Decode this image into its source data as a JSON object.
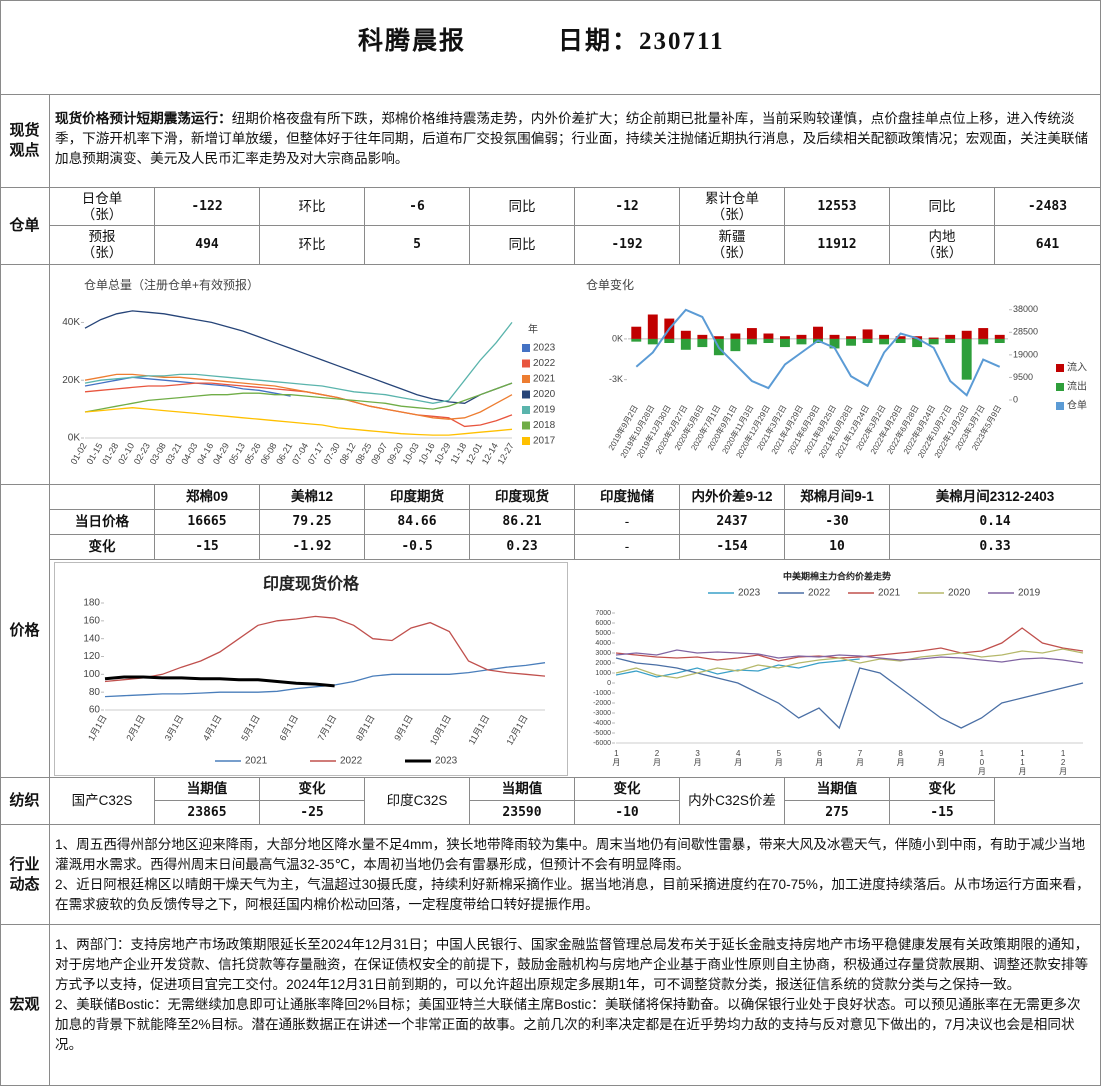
{
  "header": {
    "title": "科腾晨报",
    "date": "日期：230711"
  },
  "spot": {
    "label": "现货观点",
    "lead": "现货价格预计短期震荡运行：",
    "text": "纽期价格夜盘有所下跌，郑棉价格维持震荡走势，内外价差扩大；纺企前期已批量补库，当前采购较谨慎，点价盘挂单点位上移，进入传统淡季，下游开机率下滑，新增订单放缓，但整体好于往年同期，后道布厂交投氛围偏弱；行业面，持续关注抛储近期执行消息，及后续相关配额政策情况；宏观面，关注美联储加息预期演变、美元及人民币汇率走势及对大宗商品影响。"
  },
  "warehouse": {
    "label": "仓单",
    "rows": [
      [
        "日仓单（张）",
        -122,
        "环比",
        -6,
        "同比",
        -12,
        "累计仓单（张）",
        12553,
        "同比",
        -2483
      ],
      [
        "预报（张）",
        494,
        "环比",
        5,
        "同比",
        -192,
        "新疆（张）",
        11912,
        "内地（张）",
        641
      ]
    ]
  },
  "price": {
    "label": "价格",
    "header": [
      "郑棉09",
      "美棉12",
      "印度期货",
      "印度现货",
      "印度抛储",
      "内外价差9-12",
      "郑棉月间9-1",
      "美棉月间2312-2403"
    ],
    "rows": [
      {
        "name": "当日价格",
        "values": [
          16665,
          79.25,
          84.66,
          86.21,
          "-",
          2437,
          -30,
          0.14
        ]
      },
      {
        "name": "变化",
        "values": [
          -15,
          -1.92,
          -0.5,
          0.23,
          "-",
          -154,
          10,
          0.33
        ]
      }
    ]
  },
  "textile": {
    "label": "纺织",
    "groups": [
      {
        "name": "国产C32S",
        "current_label": "当期值",
        "current": 23865,
        "change_label": "变化",
        "change": -25
      },
      {
        "name": "印度C32S",
        "current_label": "当期值",
        "current": 23590,
        "change_label": "变化",
        "change": -10
      },
      {
        "name": "内外C32S价差",
        "current_label": "当期值",
        "current": 275,
        "change_label": "变化",
        "change": -15
      }
    ]
  },
  "industry": {
    "label": "行业动态",
    "paragraphs": [
      "1、周五西得州部分地区迎来降雨，大部分地区降水量不足4mm，狭长地带降雨较为集中。周末当地仍有间歇性雷暴，带来大风及冰雹天气，伴随小到中雨，有助于减少当地灌溉用水需求。西得州周末日间最高气温32-35℃，本周初当地仍会有雷暴形成，但预计不会有明显降雨。",
      "2、近日阿根廷棉区以晴朗干燥天气为主，气温超过30摄氏度，持续利好新棉采摘作业。据当地消息，目前采摘进度约在70-75%，加工进度持续落后。从市场运行方面来看，在需求疲软的负反馈传导之下，阿根廷国内棉价松动回落，一定程度带给口转好提振作用。"
    ]
  },
  "macro": {
    "label": "宏观",
    "paragraphs": [
      "1、两部门：支持房地产市场政策期限延长至2024年12月31日；中国人民银行、国家金融监督管理总局发布关于延长金融支持房地产市场平稳健康发展有关政策期限的通知，对于房地产企业开发贷款、信托贷款等存量融资，在保证债权安全的前提下，鼓励金融机构与房地产企业基于商业性原则自主协商，积极通过存量贷款展期、调整还款安排等方式予以支持，促进项目宜完工交付。2024年12月31日前到期的，可以允许超出原规定多展期1年，可不调整贷款分类，报送征信系统的贷款分类与之保持一致。",
      "2、美联储Bostic：无需继续加息即可让通胀率降回2%目标；美国亚特兰大联储主席Bostic：美联储将保持勤奋。以确保银行业处于良好状态。可以预见通胀率在无需更多次加息的背景下就能降至2%目标。潜在通胀数据正在讲述一个非常正面的故事。之前几次的利率决定都是在近乎势均力敌的支持与反对意见下做出的，7月决议也会是相同状况。"
    ]
  },
  "chart_data": [
    {
      "type": "line",
      "title": "仓单总量（注册仓单+有效预报）",
      "legend_title": "年",
      "categories": [
        "01-02",
        "01-15",
        "01-28",
        "02-10",
        "02-23",
        "03-08",
        "03-21",
        "04-03",
        "04-16",
        "04-29",
        "05-13",
        "05-26",
        "06-08",
        "06-21",
        "07-04",
        "07-17",
        "07-30",
        "08-12",
        "08-25",
        "09-07",
        "09-20",
        "10-03",
        "10-16",
        "10-29",
        "11-18",
        "12-01",
        "12-14",
        "12-27"
      ],
      "ylim": [
        0,
        45000
      ],
      "yticks": [
        {
          "value": 0,
          "label": "0K"
        },
        {
          "value": 20000,
          "label": "20K"
        },
        {
          "value": 40000,
          "label": "40K"
        }
      ],
      "series": [
        {
          "name": "2023",
          "color": "#4472c4",
          "values": [
            18000,
            19000,
            20000,
            21000,
            20500,
            20000,
            19500,
            19000,
            18500,
            18000,
            17000,
            16500,
            15500,
            14500,
            null,
            null,
            null,
            null,
            null,
            null,
            null,
            null,
            null,
            null,
            null,
            null,
            null,
            null
          ]
        },
        {
          "name": "2022",
          "color": "#e8553e",
          "values": [
            16000,
            16500,
            17000,
            17500,
            18000,
            18000,
            18500,
            19000,
            19000,
            18500,
            18000,
            17500,
            17000,
            16500,
            16000,
            15000,
            14000,
            12500,
            11000,
            10000,
            9000,
            8000,
            7500,
            7000,
            4000,
            4500,
            6000,
            8000
          ]
        },
        {
          "name": "2021",
          "color": "#ed7d31",
          "values": [
            20000,
            21000,
            22000,
            22000,
            21500,
            21000,
            21000,
            20500,
            20000,
            19500,
            19000,
            18500,
            18000,
            17000,
            16000,
            15000,
            14000,
            12500,
            11000,
            10000,
            9000,
            8000,
            7000,
            6500,
            7000,
            9000,
            12000,
            15000
          ]
        },
        {
          "name": "2020",
          "color": "#264478",
          "values": [
            38000,
            41000,
            43000,
            44000,
            43500,
            43000,
            42000,
            41000,
            40000,
            38500,
            37000,
            35000,
            33000,
            31000,
            29000,
            27000,
            25000,
            23000,
            21000,
            19000,
            17000,
            15000,
            13500,
            12500,
            12000,
            15000,
            17000,
            19000
          ]
        },
        {
          "name": "2019",
          "color": "#5ab4ac",
          "values": [
            19000,
            20000,
            20500,
            21000,
            21500,
            21500,
            22000,
            22000,
            21500,
            21000,
            20500,
            20000,
            19500,
            19000,
            18500,
            18000,
            17000,
            16000,
            15500,
            15000,
            14000,
            13000,
            12000,
            13000,
            20000,
            27000,
            33000,
            40000
          ]
        },
        {
          "name": "2018",
          "color": "#70ad47",
          "values": [
            9000,
            10000,
            11000,
            12000,
            13000,
            13500,
            14000,
            14500,
            15000,
            15000,
            15500,
            15500,
            15000,
            15000,
            14500,
            14000,
            13500,
            13000,
            12500,
            12000,
            11000,
            10500,
            10000,
            11000,
            13000,
            15000,
            17000,
            19000
          ]
        },
        {
          "name": "2017",
          "color": "#ffc000",
          "values": [
            9000,
            9500,
            10000,
            10500,
            10000,
            9500,
            9000,
            8500,
            8000,
            7500,
            7000,
            6500,
            6000,
            5500,
            5000,
            4500,
            3500,
            3000,
            2500,
            2000,
            1500,
            1200,
            1000,
            1000,
            1500,
            2000,
            2500,
            3000
          ]
        }
      ]
    },
    {
      "type": "bar",
      "title": "仓单变化",
      "categories": [
        "2019年9月2日",
        "2019年10月28日",
        "2019年12月30日",
        "2020年2月27日",
        "2020年5月6日",
        "2020年7月1日",
        "2020年9月1日",
        "2020年11月3日",
        "2020年12月29日",
        "2021年3月2日",
        "2021年4月29日",
        "2021年6月29日",
        "2021年8月25日",
        "2021年10月28日",
        "2021年12月24日",
        "2022年3月2日",
        "2022年4月29日",
        "2022年6月28日",
        "2022年8月24日",
        "2022年10月27日",
        "2022年12月23日",
        "2023年3月7日",
        "2023年5月9日"
      ],
      "ylim": [
        -4500,
        2500
      ],
      "yticks": [
        {
          "value": 0,
          "label": "0K"
        },
        {
          "value": -3000,
          "label": "-3K"
        }
      ],
      "y2lim": [
        0,
        40000
      ],
      "y2ticks": [
        38000,
        28500,
        19000,
        9500,
        0
      ],
      "series": [
        {
          "name": "流入",
          "color": "#c00000",
          "values": [
            900,
            1800,
            1500,
            600,
            300,
            200,
            400,
            800,
            400,
            200,
            300,
            900,
            300,
            200,
            700,
            300,
            200,
            200,
            100,
            300,
            600,
            800,
            300
          ]
        },
        {
          "name": "流出",
          "color": "#2e9e3a",
          "values": [
            -200,
            -400,
            -300,
            -800,
            -600,
            -1200,
            -900,
            -400,
            -300,
            -600,
            -400,
            -300,
            -700,
            -500,
            -300,
            -400,
            -300,
            -600,
            -400,
            -300,
            -3000,
            -400,
            -300
          ]
        },
        {
          "name": "仓单",
          "color": "#5b9bd5",
          "axis": "y2",
          "values": [
            14000,
            20000,
            30000,
            38000,
            35000,
            22000,
            15000,
            8000,
            5000,
            15000,
            20000,
            25000,
            22000,
            10000,
            6000,
            20000,
            28000,
            26000,
            22000,
            8000,
            2000,
            17000,
            14000
          ]
        }
      ]
    },
    {
      "type": "line",
      "title": "印度现货价格",
      "categories": [
        "1月1日",
        null,
        "2月1日",
        null,
        "3月1日",
        null,
        "4月1日",
        null,
        "5月1日",
        null,
        "6月1日",
        null,
        "7月1日",
        null,
        "8月1日",
        null,
        "9月1日",
        null,
        "10月1日",
        null,
        "11月1日",
        null,
        "12月1日",
        null
      ],
      "ylim": [
        60,
        180
      ],
      "yticks": [
        60,
        80,
        100,
        120,
        140,
        160,
        180
      ],
      "series": [
        {
          "name": "2021",
          "color": "#4a7ebb",
          "values": [
            75,
            76,
            77,
            78,
            78,
            79,
            80,
            80,
            80,
            81,
            84,
            86,
            88,
            92,
            98,
            100,
            100,
            100,
            100,
            102,
            105,
            108,
            110,
            113
          ]
        },
        {
          "name": "2022",
          "color": "#c0504d",
          "values": [
            92,
            94,
            96,
            100,
            108,
            115,
            125,
            140,
            155,
            160,
            162,
            165,
            163,
            155,
            140,
            138,
            152,
            158,
            148,
            115,
            105,
            102,
            100,
            98
          ]
        },
        {
          "name": "2023",
          "color": "#000000",
          "values": [
            95,
            97,
            97,
            96,
            96,
            95,
            95,
            94,
            94,
            92,
            90,
            89,
            87,
            null,
            null,
            null,
            null,
            null,
            null,
            null,
            null,
            null,
            null,
            null
          ]
        }
      ]
    },
    {
      "type": "line",
      "title": "中美期棉主力合约价差走势",
      "categories": [
        "1月",
        null,
        "2月",
        null,
        "3月",
        null,
        "4月",
        null,
        "5月",
        null,
        "6月",
        null,
        "7月",
        null,
        "8月",
        null,
        "9月",
        null,
        "10月",
        null,
        "11月",
        null,
        "12月",
        null
      ],
      "ylim": [
        -6000,
        7000
      ],
      "yticks": [
        7000,
        6000,
        5000,
        4000,
        3000,
        2000,
        1000,
        0,
        -1000,
        -2000,
        -3000,
        -4000,
        -5000,
        -6000
      ],
      "series": [
        {
          "name": "2023",
          "color": "#3aa0c8",
          "values": [
            800,
            1200,
            600,
            1000,
            1500,
            900,
            1300,
            1200,
            1800,
            1500,
            2000,
            2200,
            2400,
            null,
            null,
            null,
            null,
            null,
            null,
            null,
            null,
            null,
            null,
            null
          ]
        },
        {
          "name": "2022",
          "color": "#4a6fa5",
          "values": [
            2500,
            2000,
            1800,
            1500,
            1000,
            500,
            0,
            -1000,
            -2000,
            -3500,
            -2500,
            -4500,
            1500,
            1000,
            -500,
            -2000,
            -3500,
            -4500,
            -3500,
            -2000,
            -1500,
            -1000,
            -500,
            0
          ]
        },
        {
          "name": "2021",
          "color": "#c0504d",
          "values": [
            3000,
            2800,
            2600,
            2500,
            2600,
            2300,
            2500,
            2800,
            2200,
            2600,
            2700,
            2500,
            2600,
            2800,
            3000,
            3200,
            3500,
            3000,
            3200,
            4000,
            5500,
            4000,
            3500,
            3200
          ]
        },
        {
          "name": "2020",
          "color": "#b5b86a",
          "values": [
            1000,
            1500,
            800,
            500,
            1000,
            1500,
            1200,
            1800,
            1500,
            2000,
            2300,
            2500,
            2000,
            2400,
            2200,
            2600,
            2800,
            3000,
            2600,
            2800,
            3200,
            3000,
            3400,
            3000
          ]
        },
        {
          "name": "2019",
          "color": "#8064a2",
          "values": [
            2800,
            3000,
            2800,
            3300,
            3000,
            3100,
            3000,
            2900,
            2500,
            2700,
            2600,
            2800,
            2700,
            2500,
            2300,
            2400,
            2600,
            2500,
            2300,
            2100,
            2400,
            2500,
            2300,
            2000
          ]
        }
      ]
    }
  ]
}
